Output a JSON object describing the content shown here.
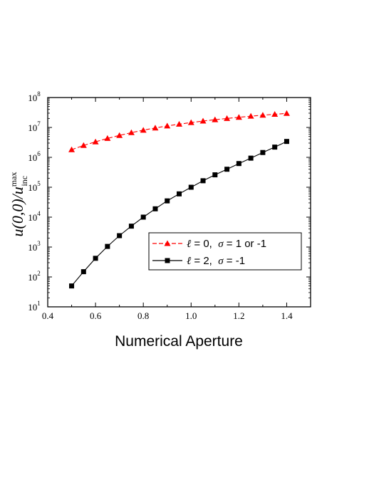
{
  "chart_data": {
    "type": "line",
    "title": "",
    "xlabel": "Numerical Aperture",
    "ylabel": "u(0,0)/u_inc^max",
    "ylabel_parts": {
      "main": "u(0,0)/u",
      "sup": "max",
      "sub": "inc"
    },
    "xlim": [
      0.4,
      1.5
    ],
    "ylim": [
      10,
      100000000
    ],
    "yscale": "log",
    "xticks": [
      "0.4",
      "0.6",
      "0.8",
      "1.0",
      "1.2",
      "1.4"
    ],
    "yticks": [
      {
        "base": "10",
        "exp": "1"
      },
      {
        "base": "10",
        "exp": "2"
      },
      {
        "base": "10",
        "exp": "3"
      },
      {
        "base": "10",
        "exp": "4"
      },
      {
        "base": "10",
        "exp": "5"
      },
      {
        "base": "10",
        "exp": "6"
      },
      {
        "base": "10",
        "exp": "7"
      },
      {
        "base": "10",
        "exp": "8"
      }
    ],
    "grid": false,
    "legend_position": "bottom-right",
    "x": [
      0.5,
      0.55,
      0.6,
      0.65,
      0.7,
      0.75,
      0.8,
      0.85,
      0.9,
      0.95,
      1.0,
      1.05,
      1.1,
      1.15,
      1.2,
      1.25,
      1.3,
      1.35,
      1.4
    ],
    "series": [
      {
        "name": "ℓ = 0,  σ = 1 or -1",
        "legend_parts": [
          "ℓ",
          " = 0,  ",
          "σ",
          " = 1 or -1"
        ],
        "color": "#ff0000",
        "marker": "triangle",
        "linestyle": "dashed",
        "values": [
          1800000,
          2500000,
          3300000,
          4300000,
          5400000,
          6700000,
          8100000,
          9600000,
          11200000,
          12900000,
          14600000,
          16400000,
          18200000,
          20000000,
          21900000,
          23800000,
          25700000,
          27600000,
          29500000
        ]
      },
      {
        "name": "ℓ = 2,  σ = -1",
        "legend_parts": [
          "ℓ",
          " = 2,  ",
          "σ",
          " = -1"
        ],
        "color": "#000000",
        "marker": "square",
        "linestyle": "solid",
        "values": [
          50,
          150,
          420,
          1050,
          2400,
          5000,
          10000,
          19000,
          35000,
          60000,
          100000,
          165000,
          260000,
          400000,
          620000,
          940000,
          1450000,
          2200000,
          3400000
        ]
      }
    ]
  }
}
